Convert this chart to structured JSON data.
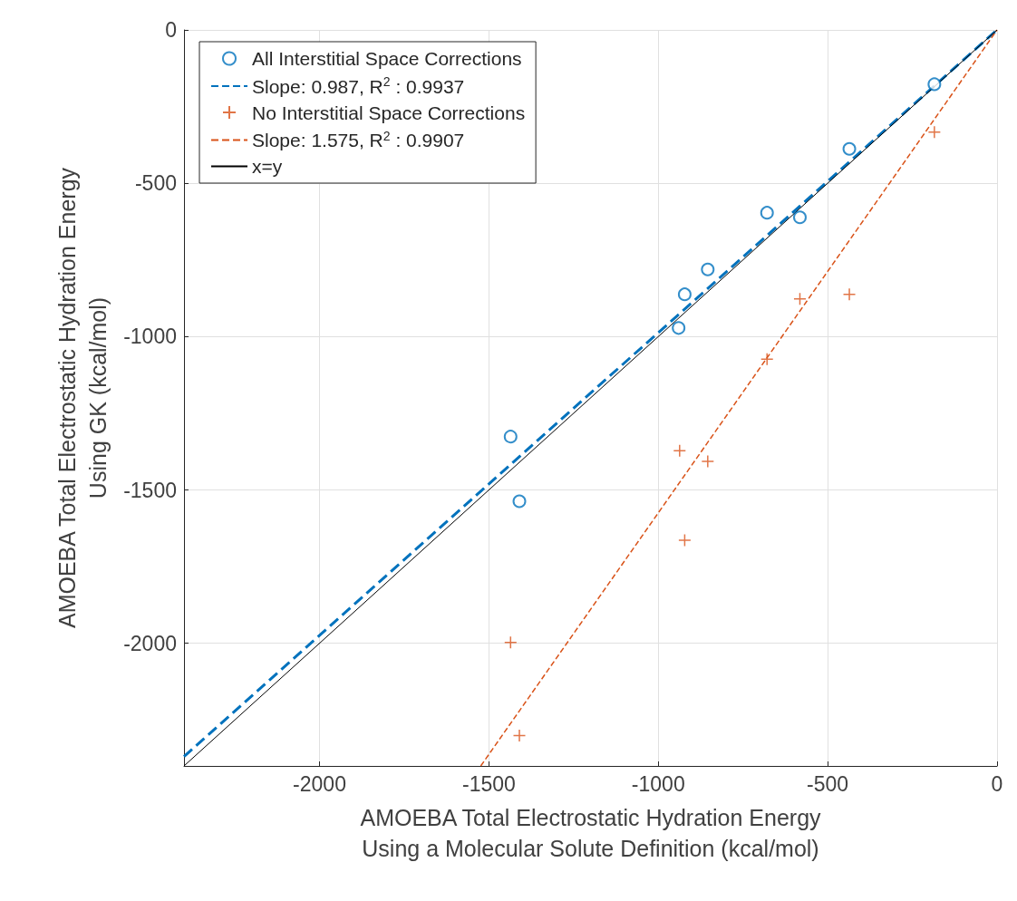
{
  "chart_data": {
    "type": "scatter",
    "xlabel": "AMOEBA Total Electrostatic Hydration Energy\nUsing a Molecular Solute Definition (kcal/mol)",
    "ylabel": "AMOEBA Total Electrostatic Hydration Energy\nUsing GK (kcal/mol)",
    "xlim": [
      -2400,
      0
    ],
    "ylim": [
      -2400,
      0
    ],
    "xticks": [
      -2000,
      -1500,
      -1000,
      -500,
      0
    ],
    "yticks": [
      -2000,
      -1500,
      -1000,
      -500,
      0
    ],
    "grid": true,
    "legend": "top left",
    "series": [
      {
        "name": "All Interstitial Space Corrections",
        "marker": "circle",
        "color": "#0072bd",
        "x": [
          -185,
          -436,
          -679,
          -582,
          -854,
          -922,
          -940,
          -1436,
          -1410
        ],
        "values": [
          -177,
          -388,
          -596,
          -611,
          -781,
          -862,
          -972,
          -1326,
          -1537
        ]
      },
      {
        "name": "Slope: 0.987, R$^{2}$ : 0.9937",
        "type": "line",
        "marker": "none",
        "line_style": "dashed",
        "color": "#0072bd",
        "x": [
          -2400,
          0
        ],
        "values": [
          -2369,
          0
        ]
      },
      {
        "name": "No Interstitial Space Corrections",
        "marker": "cross",
        "color": "#d95319",
        "x": [
          -185,
          -436,
          -582,
          -679,
          -854,
          -937,
          -922,
          -1436,
          -1410
        ],
        "values": [
          -333,
          -862,
          -877,
          -1074,
          -1407,
          -1372,
          -1664,
          -1997,
          -2301
        ]
      },
      {
        "name": "Slope: 1.575, R$^{2}$ : 0.9907",
        "type": "line",
        "marker": "none",
        "line_style": "dashed",
        "color": "#d95319",
        "x": [
          -1524,
          0
        ],
        "values": [
          -2400,
          0
        ]
      },
      {
        "name": "x=y",
        "type": "line",
        "marker": "none",
        "line_style": "solid",
        "color": "#000000",
        "x": [
          -2400,
          0
        ],
        "values": [
          -2400,
          0
        ]
      }
    ]
  }
}
